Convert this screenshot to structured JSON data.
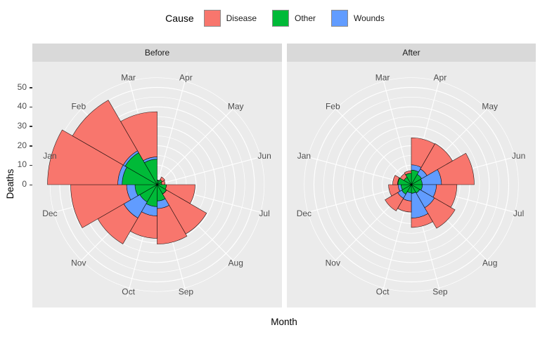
{
  "legend": {
    "title": "Cause",
    "entries": [
      {
        "label": "Disease",
        "color": "#F8766D"
      },
      {
        "label": "Other",
        "color": "#00BA38"
      },
      {
        "label": "Wounds",
        "color": "#619CFF"
      }
    ]
  },
  "facets": [
    "Before",
    "After"
  ],
  "y_axis": {
    "title": "Deaths",
    "ticks": [
      0,
      10,
      20,
      30,
      40,
      50
    ]
  },
  "x_axis": {
    "title": "Month"
  },
  "chart_data": {
    "type": "coxcomb_polar_stacked_bar",
    "title": "",
    "xlabel": "Month",
    "ylabel": "Deaths",
    "months_clockwise_from_top": [
      "Apr",
      "May",
      "Jun",
      "Jul",
      "Aug",
      "Sep",
      "Oct",
      "Nov",
      "Dec",
      "Jan",
      "Feb",
      "Mar"
    ],
    "stack_order_from_center": [
      "Other",
      "Wounds",
      "Disease"
    ],
    "radial_unit": "Deaths",
    "radial_ticks": [
      0,
      10,
      20,
      30,
      40,
      50
    ],
    "gridline_minor_step": 5,
    "grid": true,
    "legend_position": "top",
    "panels": [
      {
        "facet": "Before",
        "cum_radius": {
          "Other": [
            2.2,
            3.0,
            2.4,
            4.8,
            5.5,
            8.4,
            11.3,
            10.3,
            11.4,
            18.0,
            19.0,
            13.1
          ],
          "Wounds": [
            2.2,
            3.0,
            2.4,
            4.8,
            5.6,
            12.3,
            16.1,
            19.8,
            15.7,
            20.2,
            20.1,
            14.3
          ],
          "Disease": [
            2.4,
            4.6,
            4.1,
            19.5,
            29.3,
            30.6,
            27.6,
            35.2,
            44.4,
            56.3,
            50.2,
            37.5
          ]
        }
      },
      {
        "facet": "After",
        "cum_radius": {
          "Other": [
            7.5,
            6.1,
            5.6,
            5.7,
            5.0,
            4.5,
            4.2,
            5.7,
            5.3,
            6.9,
            4.4,
            5.9
          ],
          "Wounds": [
            10.2,
            9.3,
            15.5,
            12.9,
            13.7,
            17.2,
            8.4,
            8.1,
            6.8,
            7.1,
            4.4,
            5.9
          ],
          "Disease": [
            24.1,
            24.4,
            32.3,
            23.4,
            25.9,
            22.0,
            14.1,
            15.6,
            11.7,
            9.6,
            6.6,
            7.1
          ]
        }
      }
    ]
  }
}
